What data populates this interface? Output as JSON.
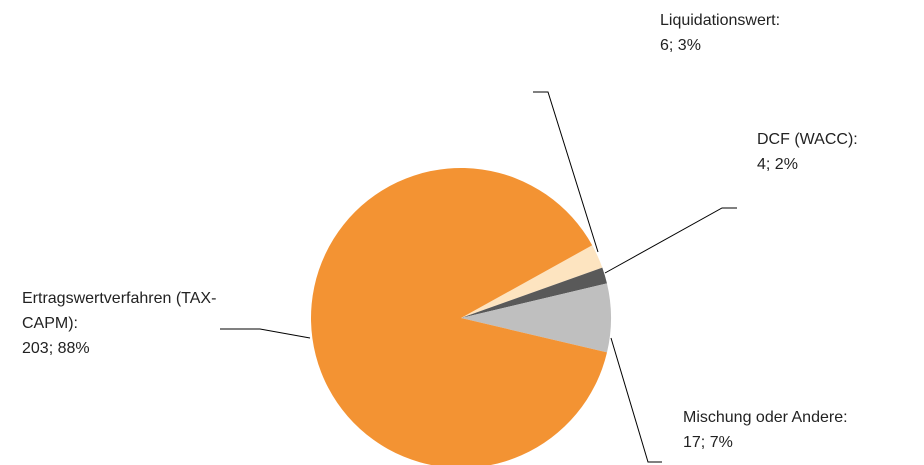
{
  "chart_data": {
    "type": "pie",
    "categories": [
      "Liquidationswert:",
      "DCF (WACC):",
      "Mischung oder Andere:",
      "Ertragswertverfahren (TAX-CAPM):"
    ],
    "values": [
      6,
      4,
      17,
      203
    ],
    "value_labels": [
      "6; 3%",
      "4; 2%",
      "17; 7%",
      "203; 88%"
    ],
    "colors": [
      "#fde4c0",
      "#595959",
      "#bfbfbf",
      "#f39333"
    ]
  }
}
